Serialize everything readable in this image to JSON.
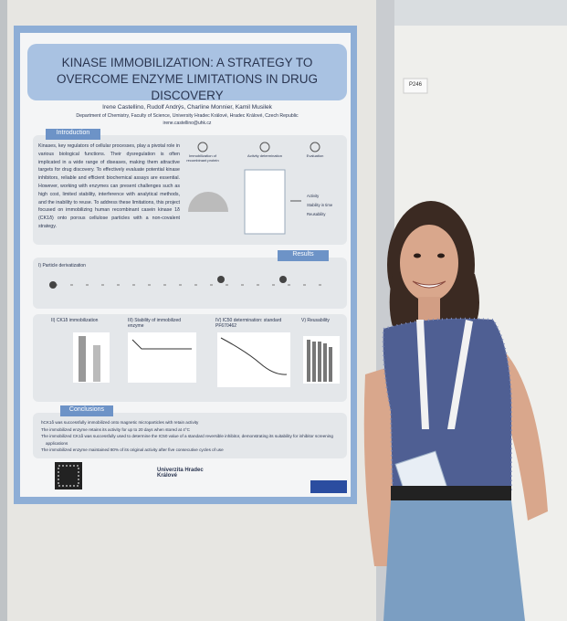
{
  "poster": {
    "title": "KINASE IMMOBILIZATION: A STRATEGY TO OVERCOME ENZYME LIMITATIONS IN DRUG DISCOVERY",
    "authors": "Irene Castellino, Rudolf Andrýs, Charline Monnier, Kamil Musilek",
    "affiliation": "Department of Chemistry, Faculty of Science, University Hradec Králové, Hradec Králové, Czech Republic",
    "email": "irene.castellino@uhk.cz",
    "introduction": {
      "heading": "Introduction",
      "text": "Kinases, key regulators of cellular processes, play a pivotal role in various biological functions. Their dysregulation is often implicated in a wide range of diseases, making them attractive targets for drug discovery. To effectively evaluate potential kinase inhibitors, reliable and efficient biochemical assays are essential. However, working with enzymes can present challenges such as high cost, limited stability, interference with analytical methods, and the inability to reuse. To address these limitations, this project focused on immobilizing human recombinant casein kinase 1δ (CK1δ) onto porous cellulose particles with a non-covalent strategy.",
      "steps": [
        "Immobilization of recombinant protein",
        "Activity determination",
        "Evaluation"
      ],
      "outcomes": [
        "Activity",
        "Stability in time",
        "Reusability"
      ]
    },
    "results": {
      "heading": "Results",
      "panels": [
        "I) Particle derivatization",
        "II) CK1δ immobilization",
        "III) Stability of immobilized enzyme",
        "IV) IC50 determination: standard PF670462",
        "V) Reusability"
      ]
    },
    "conclusions": {
      "heading": "Conclusions",
      "items": [
        "hCK1δ was successfully immobilized onto magnetic microparticles with retain activity",
        "The immobilized enzyme retains its activity for up to 20 days when stored at 4°C",
        "The immobilized CK1δ was successfully used to determine the IC50 value of a standard reversible inhibitor, demonstrating its suitability for inhibitor screening applications",
        "The immobilized enzyme maintained 80% of its original activity after five consecutive cycles of use"
      ]
    },
    "university": "Univerzita Hradec Králové"
  },
  "board_label": "P246"
}
